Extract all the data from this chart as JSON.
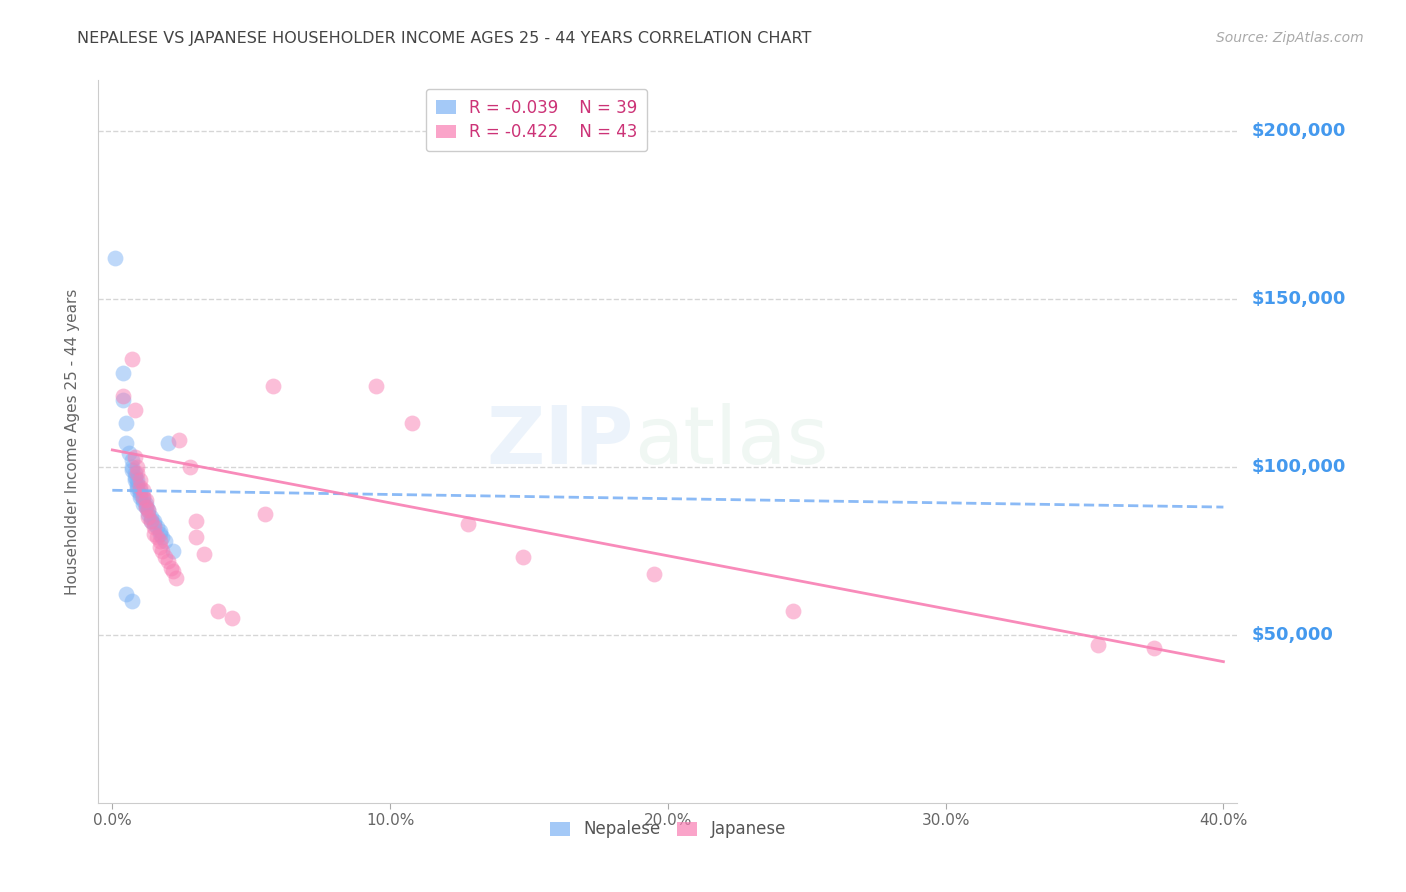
{
  "title": "NEPALESE VS JAPANESE HOUSEHOLDER INCOME AGES 25 - 44 YEARS CORRELATION CHART",
  "source": "Source: ZipAtlas.com",
  "ylabel": "Householder Income Ages 25 - 44 years",
  "xlabel_ticks": [
    "0.0%",
    "",
    "",
    "",
    "",
    "10.0%",
    "",
    "",
    "",
    "",
    "20.0%",
    "",
    "",
    "",
    "",
    "30.0%",
    "",
    "",
    "",
    "",
    "40.0%"
  ],
  "xlabel_vals": [
    0.0,
    0.02,
    0.04,
    0.06,
    0.08,
    0.1,
    0.12,
    0.14,
    0.16,
    0.18,
    0.2,
    0.22,
    0.24,
    0.26,
    0.28,
    0.3,
    0.32,
    0.34,
    0.36,
    0.38,
    0.4
  ],
  "ytick_labels": [
    "$50,000",
    "$100,000",
    "$150,000",
    "$200,000"
  ],
  "ytick_vals": [
    50000,
    100000,
    150000,
    200000
  ],
  "ylim": [
    0,
    215000
  ],
  "xlim": [
    -0.005,
    0.405
  ],
  "nepalese_R": "-0.039",
  "nepalese_N": "39",
  "japanese_R": "-0.422",
  "japanese_N": "43",
  "nepalese_color": "#7eb3f5",
  "japanese_color": "#f87eb3",
  "nepalese_scatter": [
    [
      0.001,
      162000
    ],
    [
      0.004,
      128000
    ],
    [
      0.004,
      120000
    ],
    [
      0.005,
      113000
    ],
    [
      0.005,
      107000
    ],
    [
      0.006,
      104000
    ],
    [
      0.007,
      102000
    ],
    [
      0.007,
      100000
    ],
    [
      0.007,
      99000
    ],
    [
      0.008,
      98000
    ],
    [
      0.008,
      97000
    ],
    [
      0.008,
      96000
    ],
    [
      0.009,
      96000
    ],
    [
      0.009,
      95000
    ],
    [
      0.009,
      94000
    ],
    [
      0.009,
      93000
    ],
    [
      0.01,
      93000
    ],
    [
      0.01,
      92000
    ],
    [
      0.01,
      91000
    ],
    [
      0.011,
      91000
    ],
    [
      0.011,
      90000
    ],
    [
      0.011,
      89000
    ],
    [
      0.012,
      89000
    ],
    [
      0.012,
      88000
    ],
    [
      0.013,
      87000
    ],
    [
      0.013,
      86000
    ],
    [
      0.014,
      85000
    ],
    [
      0.014,
      84000
    ],
    [
      0.015,
      84000
    ],
    [
      0.015,
      83000
    ],
    [
      0.016,
      82000
    ],
    [
      0.017,
      81000
    ],
    [
      0.017,
      80000
    ],
    [
      0.018,
      79000
    ],
    [
      0.019,
      78000
    ],
    [
      0.02,
      107000
    ],
    [
      0.005,
      62000
    ],
    [
      0.007,
      60000
    ],
    [
      0.022,
      75000
    ]
  ],
  "japanese_scatter": [
    [
      0.004,
      121000
    ],
    [
      0.007,
      132000
    ],
    [
      0.008,
      117000
    ],
    [
      0.008,
      103000
    ],
    [
      0.009,
      100000
    ],
    [
      0.009,
      98000
    ],
    [
      0.01,
      96000
    ],
    [
      0.01,
      94000
    ],
    [
      0.011,
      93000
    ],
    [
      0.011,
      91000
    ],
    [
      0.012,
      90000
    ],
    [
      0.012,
      88000
    ],
    [
      0.013,
      87000
    ],
    [
      0.013,
      85000
    ],
    [
      0.014,
      84000
    ],
    [
      0.015,
      82000
    ],
    [
      0.015,
      80000
    ],
    [
      0.016,
      79000
    ],
    [
      0.017,
      78000
    ],
    [
      0.017,
      76000
    ],
    [
      0.018,
      75000
    ],
    [
      0.019,
      73000
    ],
    [
      0.02,
      72000
    ],
    [
      0.021,
      70000
    ],
    [
      0.022,
      69000
    ],
    [
      0.023,
      67000
    ],
    [
      0.024,
      108000
    ],
    [
      0.028,
      100000
    ],
    [
      0.03,
      84000
    ],
    [
      0.03,
      79000
    ],
    [
      0.033,
      74000
    ],
    [
      0.038,
      57000
    ],
    [
      0.043,
      55000
    ],
    [
      0.055,
      86000
    ],
    [
      0.058,
      124000
    ],
    [
      0.095,
      124000
    ],
    [
      0.108,
      113000
    ],
    [
      0.128,
      83000
    ],
    [
      0.148,
      73000
    ],
    [
      0.195,
      68000
    ],
    [
      0.245,
      57000
    ],
    [
      0.355,
      47000
    ],
    [
      0.375,
      46000
    ]
  ],
  "nep_trend_x": [
    0.0,
    0.4
  ],
  "nep_trend_y": [
    93000,
    88000
  ],
  "jap_trend_x": [
    0.0,
    0.4
  ],
  "jap_trend_y": [
    105000,
    42000
  ],
  "watermark_part1": "ZIP",
  "watermark_part2": "atlas",
  "background_color": "#ffffff",
  "grid_color": "#cccccc",
  "axis_color": "#cccccc",
  "title_color": "#444444",
  "ytick_color": "#4499ee",
  "source_color": "#aaaaaa",
  "legend_text_color": "#cc3377"
}
